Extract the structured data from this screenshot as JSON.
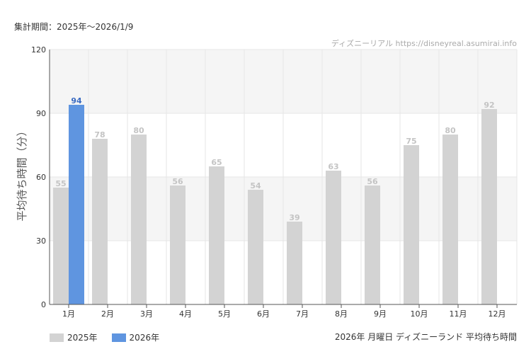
{
  "period_label": "集計期間：2025年～2026/1/9",
  "source_label": "ディズニーリアル https://disneyreal.asumirai.info",
  "caption": "2026年 月曜日 ディズニーランド 平均待ち時間",
  "colors": {
    "s2025": "#d3d3d3",
    "s2026": "#5f95e0",
    "label2025": "#c4c4c4",
    "label2026": "#3a6bc2",
    "band": "#f5f5f5",
    "grid": "#e6e6e6",
    "axis": "#555555"
  },
  "chart_data": {
    "type": "bar",
    "title": "",
    "xlabel": "",
    "ylabel": "平均待ち時間（分）",
    "ylim": [
      0,
      120
    ],
    "yticks": [
      "0",
      "30",
      "60",
      "90",
      "120"
    ],
    "categories": [
      "1月",
      "2月",
      "3月",
      "4月",
      "5月",
      "6月",
      "7月",
      "8月",
      "9月",
      "10月",
      "11月",
      "12月"
    ],
    "series": [
      {
        "name": "2025年",
        "values": [
          55,
          78,
          80,
          56,
          65,
          54,
          39,
          63,
          56,
          75,
          80,
          92
        ]
      },
      {
        "name": "2026年",
        "values": [
          94,
          null,
          null,
          null,
          null,
          null,
          null,
          null,
          null,
          null,
          null,
          null
        ]
      }
    ],
    "legend": "bottom-left"
  }
}
